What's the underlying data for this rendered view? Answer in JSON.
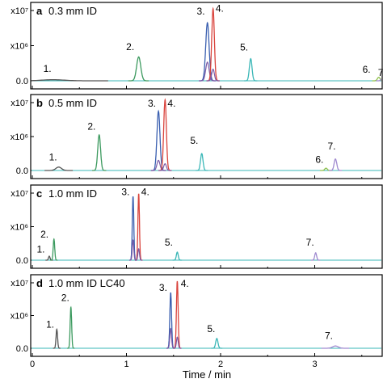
{
  "xlabel": "Time / min",
  "colors": {
    "1": "#555555",
    "2": "#3c9a5f",
    "3": "#3a5fb0",
    "3b": "#7b5aa6",
    "4": "#d9433c",
    "5": "#3ab7b7",
    "6": "#8fbf4a",
    "7": "#a08ad0"
  },
  "chart_data": [
    {
      "type": "line",
      "panel_letter": "a",
      "title": "0.3 mm ID",
      "y_ticks": [
        {
          "value": 0,
          "label": "0.0"
        },
        {
          "value": 10000000,
          "label": "x10⁶"
        },
        {
          "value": 20000000,
          "label": "x10⁷"
        }
      ],
      "ylim": [
        -800000,
        22000000
      ],
      "xlim": [
        0,
        3.7
      ],
      "peaks": [
        {
          "label": "1.",
          "t": 0.22,
          "h": 300000,
          "w": 0.12,
          "color_key": "1"
        },
        {
          "label": "2.",
          "t": 1.13,
          "h": 6800000,
          "w": 0.022,
          "color_key": "2"
        },
        {
          "label": "3.",
          "t": 1.86,
          "h": 16500000,
          "w": 0.018,
          "color_key": "3",
          "shoulder": 5300000
        },
        {
          "label": "4.",
          "t": 1.92,
          "h": 20500000,
          "w": 0.014,
          "color_key": "4",
          "shoulder": 3300000
        },
        {
          "label": "5.",
          "t": 2.32,
          "h": 6300000,
          "w": 0.014,
          "color_key": "5"
        },
        {
          "label": "6.",
          "t": 3.68,
          "h": 1000000,
          "w": 0.014,
          "color_key": "6"
        },
        {
          "label": "7",
          "t": 3.72,
          "h": 700000,
          "w": 0.014,
          "color_key": "7"
        }
      ],
      "labels": [
        {
          "text": "1.",
          "t": 0.16,
          "v": 2500000
        },
        {
          "text": "2.",
          "t": 1.04,
          "v": 8700000
        },
        {
          "text": "3.",
          "t": 1.79,
          "v": 18800000
        },
        {
          "text": "4.",
          "t": 1.99,
          "v": 19700000
        },
        {
          "text": "5.",
          "t": 2.25,
          "v": 8600000
        },
        {
          "text": "6.",
          "t": 3.55,
          "v": 2300000
        },
        {
          "text": "7",
          "t": 3.7,
          "v": 1400000
        }
      ]
    },
    {
      "type": "line",
      "panel_letter": "b",
      "title": "0.5 mm ID",
      "y_ticks": [
        {
          "value": 0,
          "label": "0.0"
        },
        {
          "value": 10000000,
          "label": "x10⁶"
        },
        {
          "value": 20000000,
          "label": "x10⁷"
        }
      ],
      "ylim": [
        -800000,
        22000000
      ],
      "xlim": [
        0,
        3.7
      ],
      "peaks": [
        {
          "label": "1.",
          "t": 0.28,
          "h": 1000000,
          "w": 0.03,
          "color_key": "1"
        },
        {
          "label": "2.",
          "t": 0.71,
          "h": 10500000,
          "w": 0.015,
          "color_key": "2"
        },
        {
          "label": "3.",
          "t": 1.34,
          "h": 17500000,
          "w": 0.016,
          "color_key": "3",
          "shoulder": 3000000
        },
        {
          "label": "4.",
          "t": 1.41,
          "h": 20800000,
          "w": 0.014,
          "color_key": "4",
          "shoulder": 2000000
        },
        {
          "label": "5.",
          "t": 1.8,
          "h": 5000000,
          "w": 0.013,
          "color_key": "5"
        },
        {
          "label": "6.",
          "t": 3.12,
          "h": 700000,
          "w": 0.013,
          "color_key": "6"
        },
        {
          "label": "7.",
          "t": 3.22,
          "h": 3400000,
          "w": 0.014,
          "color_key": "7"
        }
      ],
      "labels": [
        {
          "text": "1.",
          "t": 0.22,
          "v": 3000000
        },
        {
          "text": "2.",
          "t": 0.63,
          "v": 12000000
        },
        {
          "text": "3.",
          "t": 1.27,
          "v": 18800000
        },
        {
          "text": "4.",
          "t": 1.48,
          "v": 18800000
        },
        {
          "text": "5.",
          "t": 1.72,
          "v": 7800000
        },
        {
          "text": "6.",
          "t": 3.05,
          "v": 2300000
        },
        {
          "text": "7.",
          "t": 3.18,
          "v": 6200000
        }
      ]
    },
    {
      "type": "line",
      "panel_letter": "c",
      "title": "1.0 mm ID",
      "y_ticks": [
        {
          "value": 0,
          "label": "0.0"
        },
        {
          "value": 10000000,
          "label": "x10⁶"
        },
        {
          "value": 20000000,
          "label": "x10⁷"
        }
      ],
      "ylim": [
        -800000,
        22000000
      ],
      "xlim": [
        0,
        3.7
      ],
      "peaks": [
        {
          "label": "1.",
          "t": 0.18,
          "h": 1200000,
          "w": 0.008,
          "color_key": "1"
        },
        {
          "label": "2.",
          "t": 0.23,
          "h": 6300000,
          "w": 0.008,
          "color_key": "2"
        },
        {
          "label": "3.",
          "t": 1.07,
          "h": 19000000,
          "w": 0.008,
          "color_key": "3",
          "shoulder": 6000000
        },
        {
          "label": "4.",
          "t": 1.13,
          "h": 19800000,
          "w": 0.008,
          "color_key": "4",
          "shoulder": 3400000
        },
        {
          "label": "5.",
          "t": 1.54,
          "h": 2400000,
          "w": 0.01,
          "color_key": "5"
        },
        {
          "label": "7.",
          "t": 3.01,
          "h": 2200000,
          "w": 0.01,
          "color_key": "7"
        }
      ],
      "labels": [
        {
          "text": "1.",
          "t": 0.09,
          "v": 2300000
        },
        {
          "text": "2.",
          "t": 0.13,
          "v": 6700000
        },
        {
          "text": "3.",
          "t": 0.99,
          "v": 19400000
        },
        {
          "text": "4.",
          "t": 1.2,
          "v": 19400000
        },
        {
          "text": "5.",
          "t": 1.45,
          "v": 4300000
        },
        {
          "text": "7.",
          "t": 2.95,
          "v": 4300000
        }
      ]
    },
    {
      "type": "line",
      "panel_letter": "d",
      "title": "1.0 mm ID LC40",
      "y_ticks": [
        {
          "value": 0,
          "label": "0.0"
        },
        {
          "value": 10000000,
          "label": "x10⁶"
        },
        {
          "value": 20000000,
          "label": "x10⁷"
        }
      ],
      "ylim": [
        -800000,
        22000000
      ],
      "xlim": [
        0,
        3.7
      ],
      "peaks": [
        {
          "label": "1.",
          "t": 0.26,
          "h": 5800000,
          "w": 0.008,
          "color_key": "1"
        },
        {
          "label": "2.",
          "t": 0.41,
          "h": 12500000,
          "w": 0.008,
          "color_key": "2"
        },
        {
          "label": "3.",
          "t": 1.47,
          "h": 17000000,
          "w": 0.009,
          "color_key": "3",
          "shoulder": 6000000
        },
        {
          "label": "4.",
          "t": 1.54,
          "h": 20500000,
          "w": 0.009,
          "color_key": "4",
          "shoulder": 3400000
        },
        {
          "label": "5.",
          "t": 1.96,
          "h": 3000000,
          "w": 0.012,
          "color_key": "5"
        },
        {
          "label": "7.",
          "t": 3.22,
          "h": 700000,
          "w": 0.03,
          "color_key": "7"
        }
      ],
      "labels": [
        {
          "text": "1.",
          "t": 0.19,
          "v": 6300000
        },
        {
          "text": "2.",
          "t": 0.35,
          "v": 14500000
        },
        {
          "text": "3.",
          "t": 1.39,
          "v": 17500000
        },
        {
          "text": "4.",
          "t": 1.62,
          "v": 18800000
        },
        {
          "text": "5.",
          "t": 1.9,
          "v": 5000000
        },
        {
          "text": "7.",
          "t": 3.15,
          "v": 2800000
        }
      ]
    }
  ],
  "x_ticks": [
    {
      "value": 0,
      "label": "0"
    },
    {
      "value": 1,
      "label": "1"
    },
    {
      "value": 2,
      "label": "2"
    },
    {
      "value": 3,
      "label": "3"
    }
  ]
}
